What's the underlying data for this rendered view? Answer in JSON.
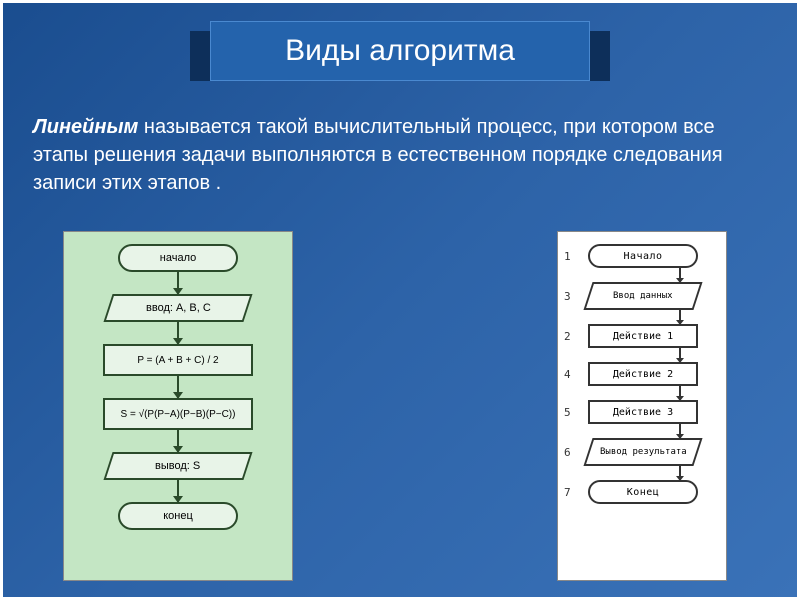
{
  "title": "Виды алгоритма",
  "description": {
    "emphasis": "Линейным",
    "rest": " называется такой вычислительный процесс, при котором все этапы решения задачи выполняются в естественном порядке следования записи этих этапов ."
  },
  "colors": {
    "bg_gradient_start": "#1a4d8f",
    "bg_gradient_end": "#3a72b8",
    "frame": "#ffffff",
    "ribbon_dark": "#0d2f5a",
    "title_bg": "#2463ac",
    "left_bg": "#c4e6c4",
    "left_stroke": "#2a4a2a",
    "right_bg": "#ffffff",
    "right_stroke": "#333333",
    "text_white": "#ffffff"
  },
  "left_flowchart": {
    "type": "flowchart",
    "nodes": [
      {
        "shape": "terminator",
        "text": "начало"
      },
      {
        "shape": "io",
        "text": "ввод: A, B, C"
      },
      {
        "shape": "process",
        "text": "P = (A + B + C) / 2"
      },
      {
        "shape": "process",
        "text": "S = √(P(P−A)(P−B)(P−C))"
      },
      {
        "shape": "io",
        "text": "вывод: S"
      },
      {
        "shape": "terminator",
        "text": "конец"
      }
    ]
  },
  "right_flowchart": {
    "type": "flowchart",
    "nodes": [
      {
        "num": "1",
        "shape": "terminator",
        "text": "Начало"
      },
      {
        "num": "3",
        "shape": "io",
        "text": "Ввод данных"
      },
      {
        "num": "2",
        "shape": "process",
        "text": "Действие 1"
      },
      {
        "num": "4",
        "shape": "process",
        "text": "Действие 2"
      },
      {
        "num": "5",
        "shape": "process",
        "text": "Действие 3"
      },
      {
        "num": "6",
        "shape": "io",
        "text": "Вывод результата"
      },
      {
        "num": "7",
        "shape": "terminator",
        "text": "Конец"
      }
    ]
  }
}
